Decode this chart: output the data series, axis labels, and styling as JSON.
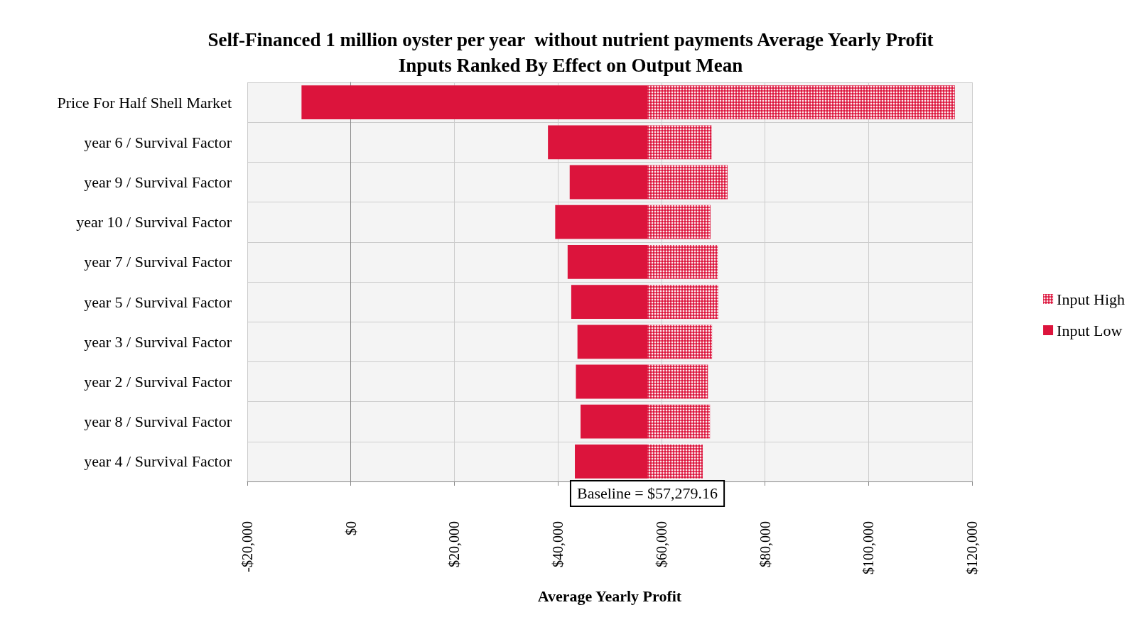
{
  "chart_data": {
    "type": "bar",
    "orientation": "horizontal",
    "title": "Self-Financed 1 million oyster per year  without nutrient payments Average Yearly Profit\nInputs Ranked By Effect on Output Mean",
    "xlabel": "Average Yearly Profit",
    "categories": [
      "Price For Half Shell Market",
      "year 6 / Survival Factor",
      "year 9 / Survival Factor",
      "year 10 / Survival Factor",
      "year 7 / Survival Factor",
      "year 5 / Survival Factor",
      "year 3 / Survival Factor",
      "year 2 / Survival Factor",
      "year 8 / Survival Factor",
      "year 4 / Survival Factor"
    ],
    "series": [
      {
        "name": "Input High",
        "color": "#dc143c",
        "base": [
          57279.16,
          57279.16,
          57279.16,
          57279.16,
          57279.16,
          57279.16,
          57279.16,
          57279.16,
          57279.16,
          57279.16
        ],
        "values": [
          59400,
          12400,
          15500,
          12200,
          13600,
          13700,
          12500,
          11700,
          12100,
          10700
        ]
      },
      {
        "name": "Input Low",
        "color": "#dc143c",
        "base": [
          57279.16,
          57279.16,
          57279.16,
          57279.16,
          57279.16,
          57279.16,
          57279.16,
          57279.16,
          57279.16,
          57279.16
        ],
        "values": [
          -66800,
          -19200,
          -15000,
          -17800,
          -15400,
          -14700,
          -13500,
          -13800,
          -12900,
          -14000
        ]
      }
    ],
    "xlim": [
      -20000,
      120000
    ],
    "xticks": [
      {
        "value": -20000,
        "label": "-$20,000"
      },
      {
        "value": 0,
        "label": "$0"
      },
      {
        "value": 20000,
        "label": "$20,000"
      },
      {
        "value": 40000,
        "label": "$40,000"
      },
      {
        "value": 60000,
        "label": "$60,000"
      },
      {
        "value": 80000,
        "label": "$80,000"
      },
      {
        "value": 100000,
        "label": "$100,000"
      },
      {
        "value": 120000,
        "label": "$120,000"
      }
    ],
    "annotations": [
      {
        "text": "Baseline = $57,279.16",
        "x": 57279.16,
        "y": "year 4 / Survival Factor"
      }
    ],
    "grid": true,
    "legend": "right"
  }
}
